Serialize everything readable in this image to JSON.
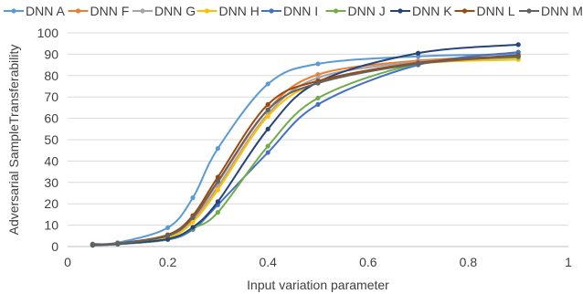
{
  "chart_data": {
    "type": "line",
    "smooth": true,
    "markers": true,
    "title": "",
    "xlabel": "Input variation parameter",
    "ylabel": "Adversarial SampleTransferability",
    "xlim": [
      0,
      1
    ],
    "ylim": [
      0,
      100
    ],
    "xticks": [
      "0",
      "0.2",
      "0.4",
      "0.6",
      "0.8",
      "1"
    ],
    "yticks": [
      "0",
      "10",
      "20",
      "30",
      "40",
      "50",
      "60",
      "70",
      "80",
      "90",
      "100"
    ],
    "grid": "horizontal",
    "legend_position": "top",
    "x": [
      0.05,
      0.1,
      0.2,
      0.25,
      0.3,
      0.4,
      0.5,
      0.7,
      0.9
    ],
    "series": [
      {
        "name": "DNN A",
        "color": "#5B9BD5",
        "values": [
          1.2,
          1.8,
          8.8,
          22.8,
          45.9,
          76.1,
          85.5,
          89.0,
          90.0
        ]
      },
      {
        "name": "DNN F",
        "color": "#ED7D31",
        "values": [
          0.9,
          1.4,
          5.0,
          13.0,
          30.0,
          64.0,
          80.5,
          87.0,
          89.0
        ]
      },
      {
        "name": "DNN G",
        "color": "#A5A5A5",
        "values": [
          0.8,
          1.3,
          4.5,
          12.0,
          28.0,
          62.0,
          79.0,
          86.5,
          89.0
        ]
      },
      {
        "name": "DNN H",
        "color": "#FFC000",
        "values": [
          0.7,
          1.2,
          4.0,
          11.5,
          26.5,
          61.0,
          76.5,
          85.5,
          87.5
        ]
      },
      {
        "name": "DNN I",
        "color": "#4472C4",
        "values": [
          0.6,
          1.1,
          3.2,
          8.0,
          19.5,
          44.0,
          66.5,
          85.0,
          91.0
        ]
      },
      {
        "name": "DNN J",
        "color": "#70AD47",
        "values": [
          0.6,
          1.1,
          3.3,
          8.5,
          16.0,
          47.0,
          69.5,
          85.5,
          88.5
        ]
      },
      {
        "name": "DNN K",
        "color": "#264478",
        "values": [
          0.7,
          1.2,
          3.5,
          9.0,
          21.0,
          55.0,
          77.0,
          90.5,
          94.5
        ]
      },
      {
        "name": "DNN L",
        "color": "#9E480E",
        "values": [
          1.1,
          1.5,
          5.5,
          14.5,
          32.5,
          66.5,
          77.5,
          86.0,
          89.5
        ]
      },
      {
        "name": "DNN M",
        "color": "#636363",
        "values": [
          1.0,
          1.4,
          5.0,
          13.5,
          30.5,
          64.0,
          76.5,
          85.5,
          89.0
        ]
      }
    ]
  }
}
